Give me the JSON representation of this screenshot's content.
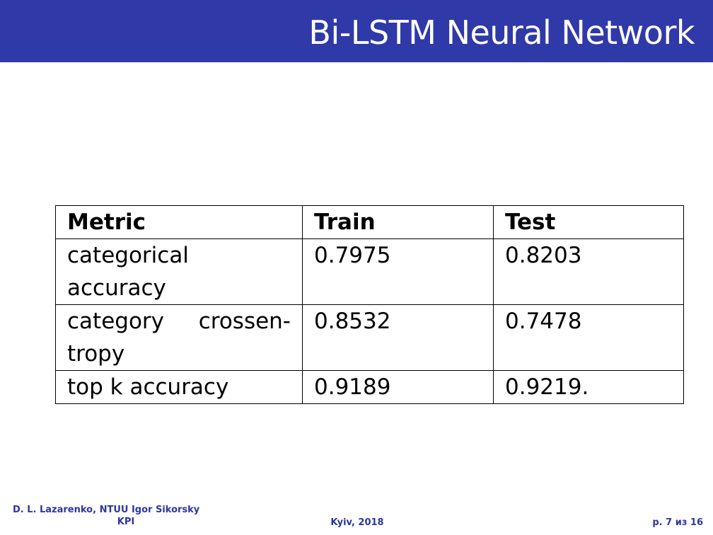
{
  "slide": {
    "title": "Bi-LSTM Neural Network"
  },
  "table": {
    "headers": [
      "Metric",
      "Train",
      "Test"
    ],
    "rows": [
      [
        "categorical accuracy",
        "0.7975",
        "0.8203"
      ],
      [
        "category crossen- tropy",
        "0.8532",
        "0.7478"
      ],
      [
        "top k accuracy",
        "0.9189",
        "0.9219."
      ]
    ]
  },
  "footer": {
    "author_line1": "D. L. Lazarenko, NTUU Igor Sikorsky",
    "author_line2": "KPI",
    "place_date": "Kyiv, 2018",
    "page": "p. 7 из 16"
  },
  "colors": {
    "title_bar": "#3039a8",
    "footer_text": "#2e36a3"
  }
}
